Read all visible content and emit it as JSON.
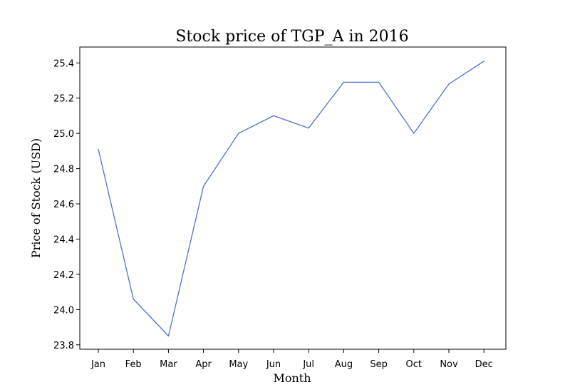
{
  "chart_data": {
    "type": "line",
    "title": "Stock price of TGP_A in 2016",
    "xlabel": "Month",
    "ylabel": "Price of Stock (USD)",
    "categories": [
      "Jan",
      "Feb",
      "Mar",
      "Apr",
      "May",
      "Jun",
      "Jul",
      "Aug",
      "Sep",
      "Oct",
      "Nov",
      "Dec"
    ],
    "series": [
      {
        "values": [
          24.91,
          24.06,
          23.85,
          24.7,
          25.0,
          25.1,
          25.03,
          25.29,
          25.29,
          25.0,
          25.28,
          25.41
        ],
        "color": "#4c72d1"
      }
    ],
    "ylim": [
      23.775,
      25.49
    ],
    "yticks": [
      "23.8",
      "24.0",
      "24.2",
      "24.4",
      "24.6",
      "24.8",
      "25.0",
      "25.2",
      "25.4"
    ],
    "grid": false,
    "legend": "none"
  }
}
